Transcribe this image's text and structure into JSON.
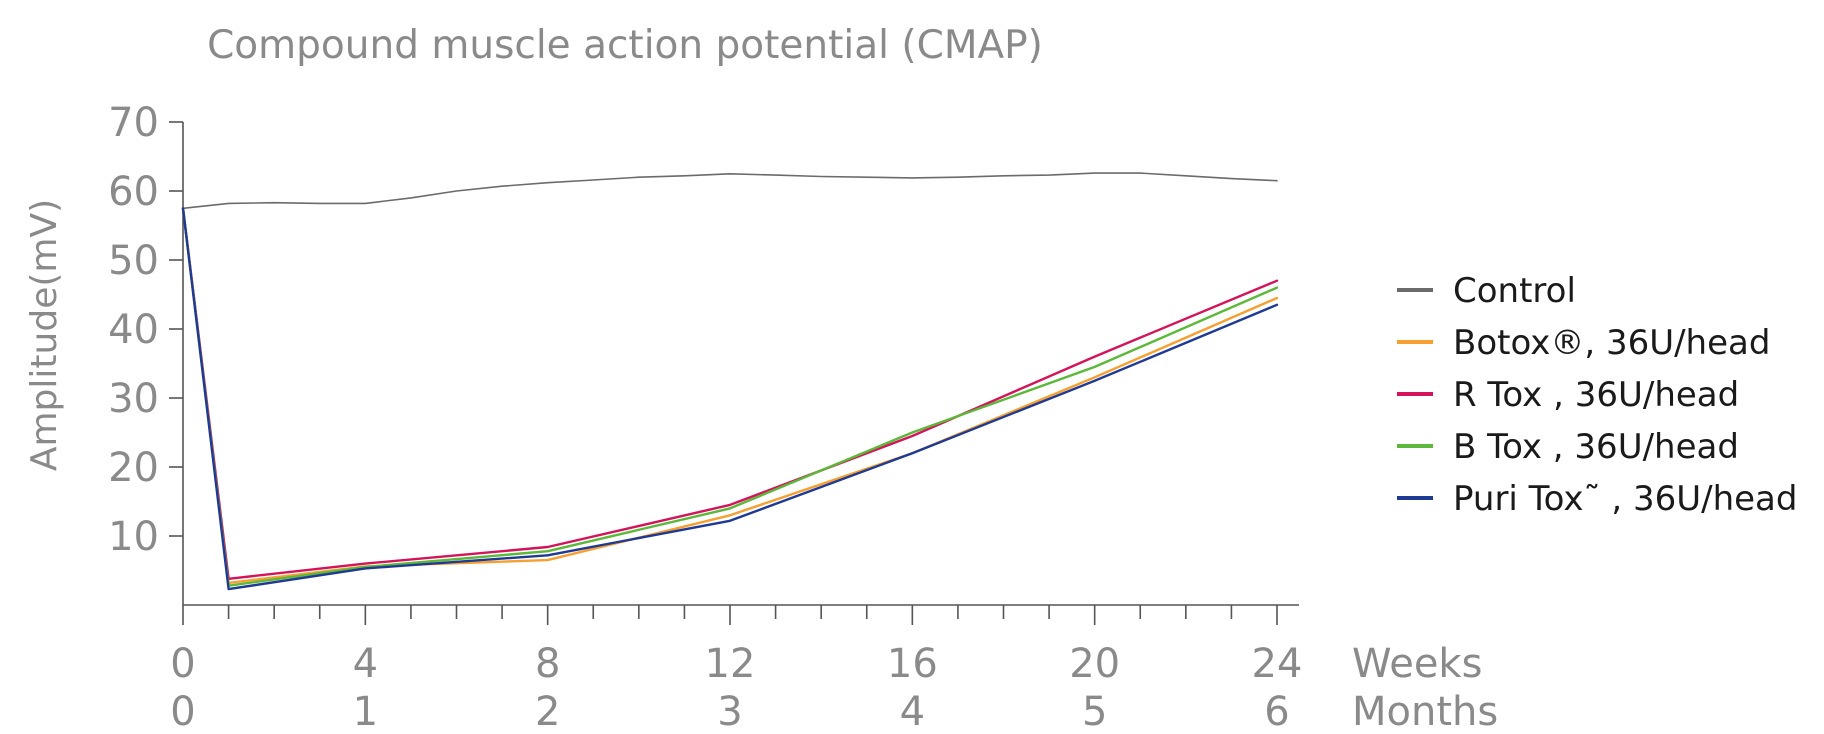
{
  "chart_data": {
    "type": "line",
    "title": "Compound muscle action potential (CMAP)",
    "ylabel": "Amplitude(mV)",
    "ylim": [
      0,
      70
    ],
    "y_ticks": [
      10,
      20,
      30,
      40,
      50,
      60,
      70
    ],
    "xlim": [
      0,
      24
    ],
    "x_ticks": [
      0,
      4,
      8,
      12,
      16,
      20,
      24
    ],
    "x_tick_labels_weeks": [
      "0",
      "4",
      "8",
      "12",
      "16",
      "20",
      "24"
    ],
    "x_tick_labels_months": [
      "0",
      "1",
      "2",
      "3",
      "4",
      "5",
      "6"
    ],
    "x_unit_weeks": "Weeks",
    "x_unit_months": "Months",
    "grid": false,
    "legend_position": "right",
    "series": [
      {
        "name": "Control",
        "color": "#6b6b6b",
        "x": [
          0,
          1,
          2,
          3,
          4,
          5,
          6,
          7,
          8,
          9,
          10,
          11,
          12,
          13,
          14,
          15,
          16,
          17,
          18,
          19,
          20,
          21,
          22,
          23,
          24
        ],
        "y": [
          57.5,
          58.2,
          58.3,
          58.2,
          58.2,
          59.0,
          60.0,
          60.7,
          61.2,
          61.6,
          62.0,
          62.2,
          62.5,
          62.3,
          62.1,
          62.0,
          61.9,
          62.0,
          62.2,
          62.3,
          62.6,
          62.6,
          62.2,
          61.8,
          61.5
        ]
      },
      {
        "name": "Botox®, 36U/head",
        "color": "#f5a030",
        "x": [
          0,
          1,
          4,
          8,
          12,
          16,
          20,
          24
        ],
        "y": [
          57.5,
          3.2,
          5.6,
          6.5,
          13.0,
          22.0,
          33.0,
          44.5
        ]
      },
      {
        "name": "R Tox , 36U/head",
        "color": "#d4145a",
        "x": [
          0,
          1,
          4,
          8,
          12,
          16,
          20,
          24
        ],
        "y": [
          57.5,
          3.8,
          6.0,
          8.4,
          14.5,
          24.5,
          36.0,
          47.0
        ]
      },
      {
        "name": "B Tox , 36U/head",
        "color": "#5cb83a",
        "x": [
          0,
          1,
          4,
          8,
          12,
          16,
          20,
          24
        ],
        "y": [
          57.5,
          2.8,
          5.5,
          7.8,
          14.0,
          25.0,
          34.5,
          46.0
        ]
      },
      {
        "name": "Puri Tox˜ , 36U/head",
        "color": "#1f3a93",
        "x": [
          0,
          1,
          4,
          8,
          12,
          16,
          20,
          24
        ],
        "y": [
          57.5,
          2.3,
          5.3,
          7.2,
          12.2,
          22.0,
          32.5,
          43.5
        ]
      }
    ]
  }
}
